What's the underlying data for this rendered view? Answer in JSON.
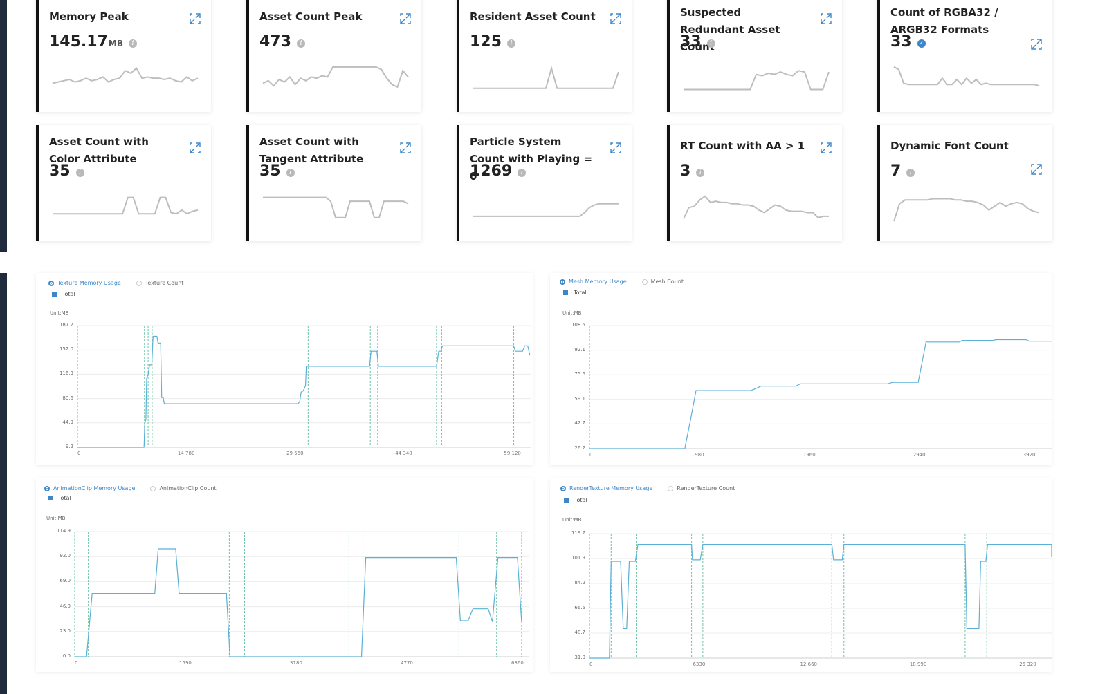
{
  "cards": [
    {
      "title": "Memory Peak",
      "value": "145.17",
      "unit": "MB",
      "icon": "info-icon",
      "spark": [
        14,
        13,
        12,
        11,
        13,
        12,
        10,
        12,
        11,
        9,
        13,
        11,
        10,
        4,
        6,
        2,
        10,
        9,
        10,
        10,
        11,
        10,
        12,
        13,
        9,
        12,
        10
      ]
    },
    {
      "title": "Asset Count Peak",
      "value": "473",
      "unit": "",
      "icon": "info-icon",
      "spark": [
        14,
        12,
        16,
        11,
        13,
        9,
        15,
        10,
        12,
        9,
        10,
        8,
        9,
        1,
        1,
        1,
        1,
        1,
        1,
        1,
        1,
        1,
        3,
        10,
        15,
        17,
        4,
        9
      ]
    },
    {
      "title": "Resident Asset Count",
      "value": "125",
      "unit": "",
      "icon": "info-icon",
      "spark": [
        18,
        18,
        18,
        18,
        18,
        18,
        18,
        18,
        18,
        18,
        18,
        18,
        18,
        18,
        2,
        18,
        18,
        18,
        18,
        18,
        18,
        18,
        18,
        18,
        18,
        18,
        5
      ]
    },
    {
      "title": "Suspected Redundant Asset Count",
      "value": "33",
      "unit": "",
      "icon": "info-icon",
      "spark": [
        19,
        19,
        19,
        19,
        19,
        19,
        19,
        19,
        19,
        19,
        19,
        19,
        7,
        8,
        6,
        7,
        5,
        7,
        8,
        4,
        5,
        19,
        19,
        19,
        5
      ]
    },
    {
      "title": "Count of RGBA32 / ARGB32 Formats",
      "value": "33",
      "unit": "",
      "icon": "check-icon",
      "spark": [
        1,
        3,
        14,
        15,
        15,
        15,
        15,
        15,
        15,
        15,
        10,
        15,
        15,
        11,
        15,
        10,
        14,
        11,
        15,
        14,
        15,
        15,
        15,
        15,
        15,
        15,
        15,
        15,
        15,
        15,
        16
      ]
    },
    {
      "title": "Asset Count with Color Attribute",
      "value": "35",
      "unit": "",
      "icon": "info-icon",
      "spark": [
        15,
        15,
        15,
        15,
        15,
        15,
        15,
        15,
        15,
        15,
        15,
        15,
        15,
        15,
        2,
        2,
        15,
        15,
        15,
        15,
        2,
        2,
        14,
        15,
        12,
        15,
        13,
        12
      ]
    },
    {
      "title": "Asset Count with Tangent Attribute",
      "value": "35",
      "unit": "",
      "icon": "info-icon",
      "spark": [
        2,
        2,
        2,
        2,
        2,
        2,
        2,
        2,
        2,
        2,
        2,
        2,
        2,
        2,
        5,
        18,
        18,
        18,
        5,
        5,
        5,
        5,
        5,
        18,
        18,
        5,
        5,
        5,
        5,
        5,
        7
      ]
    },
    {
      "title": "Particle System Count with Playing = 0",
      "value": "1269",
      "unit": "",
      "icon": "info-icon",
      "spark": [
        17,
        17,
        17,
        17,
        17,
        17,
        17,
        17,
        17,
        17,
        17,
        17,
        17,
        17,
        17,
        17,
        17,
        17,
        17,
        17,
        17,
        17,
        17,
        14,
        10,
        8,
        7,
        7,
        7,
        7,
        7
      ]
    },
    {
      "title": "RT Count with AA > 1",
      "value": "3",
      "unit": "",
      "icon": "info-icon",
      "spark": [
        19,
        10,
        9,
        4,
        1,
        6,
        5,
        6,
        6,
        7,
        7,
        8,
        8,
        9,
        12,
        14,
        11,
        8,
        9,
        12,
        13,
        13,
        13,
        14,
        14,
        18,
        17,
        17
      ]
    },
    {
      "title": "Dynamic Font Count",
      "value": "7",
      "unit": "",
      "icon": "info-icon",
      "spark": [
        21,
        7,
        4,
        4,
        4,
        4,
        4,
        3,
        3,
        3,
        3,
        4,
        4,
        5,
        5,
        6,
        8,
        12,
        9,
        6,
        9,
        7,
        6,
        7,
        11,
        13,
        14
      ]
    }
  ],
  "charts": [
    {
      "tabs": [
        {
          "label": "Texture Memory Usage",
          "active": true
        },
        {
          "label": "Texture Count",
          "active": false
        }
      ],
      "legend": "Total",
      "unit": "Unit:MB",
      "color": "#5ab0d5",
      "chart_data": {
        "type": "line",
        "y_ticks": [
          "187.7",
          "152.0",
          "116.3",
          "80.6",
          "44.9",
          "9.2"
        ],
        "ylim": [
          9.2,
          187.7
        ],
        "x_ticks": [
          {
            "v": 0,
            "label": "0"
          },
          {
            "v": 14780,
            "label": "14 780"
          },
          {
            "v": 29560,
            "label": "29 560"
          },
          {
            "v": 44340,
            "label": "44 340"
          },
          {
            "v": 59120,
            "label": "59 120"
          }
        ],
        "xlim": [
          0,
          61600
        ],
        "markers": [
          0,
          9100,
          9600,
          10150,
          31350,
          39800,
          40800,
          48800,
          49500,
          59300
        ],
        "points": [
          [
            0,
            9.2
          ],
          [
            9050,
            9.2
          ],
          [
            9150,
            44.9
          ],
          [
            9300,
            50
          ],
          [
            9400,
            110
          ],
          [
            9600,
            116
          ],
          [
            9800,
            130
          ],
          [
            10100,
            130
          ],
          [
            10250,
            167
          ],
          [
            10300,
            172
          ],
          [
            10800,
            172
          ],
          [
            10950,
            162
          ],
          [
            11300,
            162
          ],
          [
            11450,
            82
          ],
          [
            11650,
            82
          ],
          [
            11800,
            73
          ],
          [
            29950,
            73
          ],
          [
            30200,
            76
          ],
          [
            30400,
            90
          ],
          [
            30700,
            92
          ],
          [
            31000,
            100
          ],
          [
            31100,
            128
          ],
          [
            39700,
            128
          ],
          [
            39900,
            150
          ],
          [
            40700,
            150
          ],
          [
            40900,
            128
          ],
          [
            48800,
            128
          ],
          [
            49100,
            150
          ],
          [
            49400,
            150
          ],
          [
            49600,
            158
          ],
          [
            59300,
            158
          ],
          [
            59500,
            150
          ],
          [
            60500,
            150
          ],
          [
            60800,
            158
          ],
          [
            61200,
            158
          ],
          [
            61500,
            144
          ]
        ]
      }
    },
    {
      "tabs": [
        {
          "label": "Mesh Memory Usage",
          "active": true
        },
        {
          "label": "Mesh Count",
          "active": false
        }
      ],
      "legend": "Total",
      "unit": "Unit:MB",
      "color": "#5ab0d5",
      "chart_data": {
        "type": "line",
        "y_ticks": [
          "108.5",
          "92.1",
          "75.6",
          "59.1",
          "42.7",
          "26.2"
        ],
        "ylim": [
          26.2,
          108.5
        ],
        "x_ticks": [
          {
            "v": 0,
            "label": "0"
          },
          {
            "v": 980,
            "label": "980"
          },
          {
            "v": 1960,
            "label": "1960"
          },
          {
            "v": 2940,
            "label": "2940"
          },
          {
            "v": 3920,
            "label": "3920"
          }
        ],
        "xlim": [
          0,
          4120
        ],
        "markers": [
          0
        ],
        "points": [
          [
            0,
            26.2
          ],
          [
            850,
            26.2
          ],
          [
            900,
            45
          ],
          [
            950,
            65
          ],
          [
            1440,
            65
          ],
          [
            1500,
            67
          ],
          [
            1530,
            68
          ],
          [
            1840,
            68
          ],
          [
            1880,
            69.5
          ],
          [
            2660,
            69.5
          ],
          [
            2700,
            70.5
          ],
          [
            2930,
            70.5
          ],
          [
            3000,
            97.5
          ],
          [
            3300,
            97.5
          ],
          [
            3320,
            98.5
          ],
          [
            3600,
            98.5
          ],
          [
            3620,
            99
          ],
          [
            3890,
            99
          ],
          [
            3920,
            98
          ],
          [
            4120,
            98
          ]
        ]
      }
    },
    {
      "tabs": [
        {
          "label": "AnimationClip Memory Usage",
          "active": true
        },
        {
          "label": "AnimationClip Count",
          "active": false
        }
      ],
      "legend": "Total",
      "unit": "Unit:MB",
      "color": "#5ab0d5",
      "chart_data": {
        "type": "line",
        "y_ticks": [
          "114.9",
          "92.0",
          "69.0",
          "46.0",
          "23.0",
          "0.0"
        ],
        "ylim": [
          0,
          114.9
        ],
        "x_ticks": [
          {
            "v": 0,
            "label": "0"
          },
          {
            "v": 1590,
            "label": "1590"
          },
          {
            "v": 3180,
            "label": "3180"
          },
          {
            "v": 4770,
            "label": "4770"
          },
          {
            "v": 6360,
            "label": "6360"
          }
        ],
        "xlim": [
          0,
          6520
        ],
        "markers": [
          0,
          195,
          2220,
          2440,
          3940,
          4140,
          5520,
          6060,
          6420
        ],
        "points": [
          [
            0,
            0
          ],
          [
            170,
            0
          ],
          [
            250,
            58
          ],
          [
            1150,
            58
          ],
          [
            1200,
            99
          ],
          [
            1450,
            99
          ],
          [
            1500,
            58
          ],
          [
            2180,
            58
          ],
          [
            2230,
            0
          ],
          [
            3960,
            0
          ],
          [
            4120,
            0
          ],
          [
            4180,
            91
          ],
          [
            5480,
            91
          ],
          [
            5540,
            33
          ],
          [
            5650,
            33
          ],
          [
            5720,
            44
          ],
          [
            5940,
            44
          ],
          [
            6000,
            32
          ],
          [
            6080,
            91
          ],
          [
            6360,
            91
          ],
          [
            6420,
            32
          ]
        ]
      }
    },
    {
      "tabs": [
        {
          "label": "RenderTexture Memory Usage",
          "active": true
        },
        {
          "label": "RenderTexture Count",
          "active": false
        }
      ],
      "legend": "Total",
      "unit": "Unit:MB",
      "color": "#5ab0d5",
      "chart_data": {
        "type": "line",
        "y_ticks": [
          "119.7",
          "101.9",
          "84.2",
          "66.5",
          "48.7",
          "31.0"
        ],
        "ylim": [
          31.0,
          119.7
        ],
        "x_ticks": [
          {
            "v": 0,
            "label": "0"
          },
          {
            "v": 6330,
            "label": "6330"
          },
          {
            "v": 12660,
            "label": "12 660"
          },
          {
            "v": 18990,
            "label": "18 990"
          },
          {
            "v": 25320,
            "label": "25 320"
          }
        ],
        "xlim": [
          0,
          26700
        ],
        "markers": [
          0,
          1250,
          2700,
          5900,
          6550,
          14000,
          14700,
          21700,
          22950
        ],
        "points": [
          [
            0,
            31
          ],
          [
            1150,
            31
          ],
          [
            1250,
            100
          ],
          [
            1800,
            100
          ],
          [
            1950,
            52
          ],
          [
            2150,
            52
          ],
          [
            2300,
            100
          ],
          [
            2650,
            100
          ],
          [
            2800,
            112
          ],
          [
            5900,
            112
          ],
          [
            5950,
            101
          ],
          [
            6400,
            101
          ],
          [
            6550,
            112
          ],
          [
            14000,
            112
          ],
          [
            14100,
            101
          ],
          [
            14600,
            101
          ],
          [
            14700,
            112
          ],
          [
            21700,
            112
          ],
          [
            21800,
            52
          ],
          [
            22500,
            52
          ],
          [
            22600,
            100
          ],
          [
            22900,
            100
          ],
          [
            23000,
            112
          ],
          [
            26700,
            112
          ],
          [
            26700,
            103
          ]
        ]
      }
    }
  ]
}
